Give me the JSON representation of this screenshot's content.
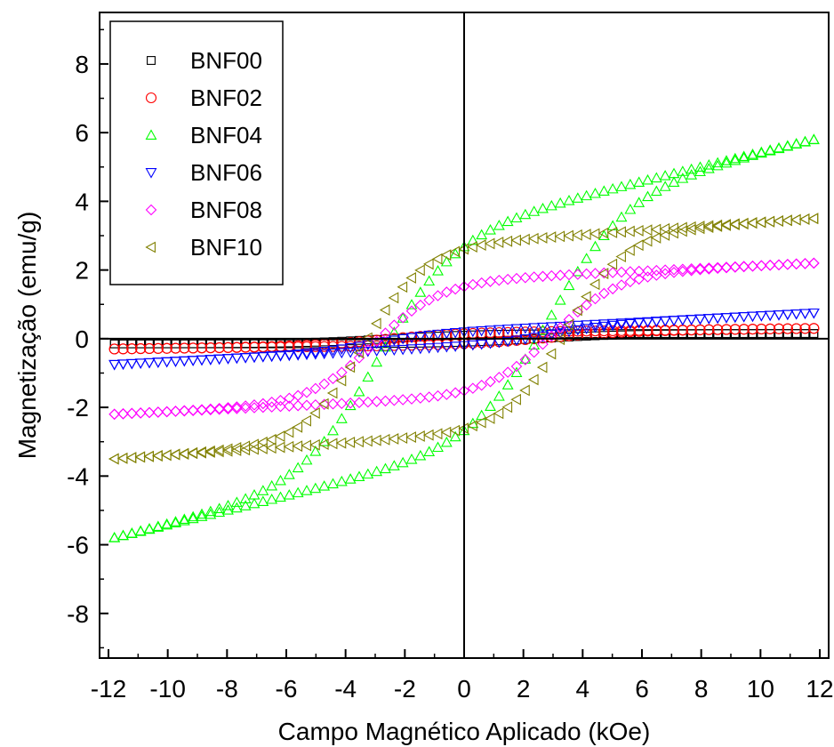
{
  "chart_data": {
    "type": "scatter",
    "title": "",
    "xlabel": "Campo Magnético Aplicado (kOe)",
    "ylabel": "Magnetização (emu/g)",
    "xlim": [
      -12.3,
      12.3
    ],
    "ylim": [
      -9.3,
      9.5
    ],
    "xticks": [
      -12,
      -10,
      -8,
      -6,
      -4,
      -2,
      0,
      2,
      4,
      6,
      8,
      10,
      12
    ],
    "yticks": [
      -8,
      -6,
      -4,
      -2,
      0,
      2,
      4,
      6,
      8
    ],
    "zero_lines": true,
    "grid": false,
    "legend_position": "top-left",
    "series": [
      {
        "name": "BNF00",
        "marker": "square",
        "color": "#000000",
        "Ms": 0.15,
        "Mr": 0.02,
        "Hc": 2.5,
        "width": 3.0,
        "linear": 0.0
      },
      {
        "name": "BNF02",
        "marker": "circle",
        "color": "#ff0000",
        "Ms": 0.3,
        "Mr": 0.07,
        "Hc": 2.8,
        "width": 2.6,
        "linear": 0.01
      },
      {
        "name": "BNF04",
        "marker": "triangle-up",
        "color": "#00ff00",
        "Ms": 5.8,
        "Mr": 2.6,
        "Hc": 2.9,
        "width": 2.6,
        "linear": 0.21
      },
      {
        "name": "BNF06",
        "marker": "triangle-down",
        "color": "#0000ff",
        "Ms": 0.75,
        "Mr": 0.55,
        "Hc": 3.0,
        "width": 2.0,
        "linear": 0.045
      },
      {
        "name": "BNF08",
        "marker": "diamond",
        "color": "#ff00ff",
        "Ms": 2.2,
        "Mr": 1.45,
        "Hc": 3.0,
        "width": 2.2,
        "linear": 0.04
      },
      {
        "name": "BNF10",
        "marker": "triangle-left",
        "color": "#808000",
        "Ms": 3.5,
        "Mr": 2.4,
        "Hc": 3.4,
        "width": 2.0,
        "linear": 0.06
      }
    ]
  }
}
